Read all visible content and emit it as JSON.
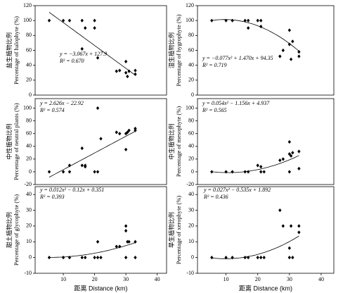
{
  "chart_data": [
    {
      "type": "scatter",
      "ylabel": [
        "盐生植物比例",
        "Percentage of halophyte (%)"
      ],
      "equation": "y = −3.067x + 127.9",
      "r2": "R² = 0.670",
      "fit": [
        0,
        -3.067,
        127.9
      ],
      "x": [
        5.5,
        10,
        12,
        16,
        16,
        17,
        20,
        20,
        21,
        27,
        28,
        30,
        30,
        30.5,
        31,
        33,
        33
      ],
      "values": [
        100,
        100,
        100,
        100,
        62,
        90,
        100,
        90,
        50,
        32,
        33,
        45,
        30,
        25,
        32,
        33,
        28
      ],
      "xlim": [
        1,
        43
      ],
      "ylim": [
        0,
        120
      ],
      "yticks": [
        0,
        20,
        40,
        60,
        80,
        100,
        120
      ],
      "color": "#000000"
    },
    {
      "type": "scatter",
      "ylabel": [
        "湿生植物比例",
        "Percentage of hygrophyte (%)"
      ],
      "equation": "y = −0.077x² + 1.470x + 94.35",
      "r2": "R² = 0.719",
      "fit": [
        -0.077,
        1.47,
        94.35
      ],
      "x": [
        5.5,
        10,
        12,
        16,
        17,
        17,
        20,
        21,
        21,
        27,
        28,
        30,
        30,
        30.5,
        31,
        33,
        33
      ],
      "values": [
        100,
        100,
        100,
        100,
        100,
        90,
        100,
        100,
        92,
        52,
        60,
        87,
        68,
        48,
        72,
        58,
        52
      ],
      "xlim": [
        1,
        44
      ],
      "ylim": [
        0,
        120
      ],
      "yticks": [
        0,
        20,
        40,
        60,
        80,
        100,
        120
      ],
      "color": "#000000"
    },
    {
      "type": "scatter",
      "ylabel": [
        "中性植物比例",
        "Percentage of neutral plants (%)"
      ],
      "equation": "y = 2.626x − 22.92",
      "r2": "R² = 0.574",
      "fit": [
        0,
        2.626,
        -22.92
      ],
      "x": [
        5.5,
        10,
        12,
        12,
        16,
        16,
        17,
        17,
        20,
        21,
        21,
        22,
        27,
        28,
        30,
        30,
        30.5,
        31,
        33,
        33
      ],
      "values": [
        0,
        0,
        0,
        10,
        37,
        10,
        10,
        8,
        0,
        0,
        100,
        52,
        62,
        60,
        35,
        60,
        62,
        65,
        68,
        65
      ],
      "xlim": [
        1,
        43
      ],
      "ylim": [
        -20,
        115
      ],
      "yticks": [
        -20,
        0,
        20,
        40,
        60,
        80,
        100
      ],
      "color": "#000000"
    },
    {
      "type": "scatter",
      "ylabel": [
        "中生植物比例",
        "Percentage of mesophyte (%)"
      ],
      "equation": "y = 0.054x² − 1.156x + 4.937",
      "r2": "R² = 0.565",
      "fit": [
        0.054,
        -1.156,
        4.937
      ],
      "x": [
        5.5,
        10,
        12,
        16,
        17,
        20,
        21,
        21,
        22,
        27,
        28,
        30,
        30,
        30,
        30.5,
        31,
        33,
        33
      ],
      "values": [
        0,
        0,
        0,
        0,
        0,
        10,
        8,
        0,
        0,
        18,
        20,
        0,
        47,
        28,
        25,
        30,
        5,
        32
      ],
      "xlim": [
        1,
        44
      ],
      "ylim": [
        -20,
        115
      ],
      "yticks": [
        -20,
        0,
        20,
        40,
        60,
        80,
        100
      ],
      "color": "#000000"
    },
    {
      "type": "scatter",
      "ylabel": [
        "甜土植物比例",
        "Percentage of glycophyte (%)"
      ],
      "equation": "y = 0.012x² − 0.12x + 0.351",
      "r2": "R² = 0.393",
      "fit": [
        0.012,
        -0.12,
        0.351
      ],
      "xlabel": "距离  Distance (km)",
      "x": [
        5.5,
        10,
        12,
        16,
        17,
        20,
        21,
        21,
        22,
        27,
        28,
        30,
        30,
        30,
        30.5,
        31,
        33,
        33
      ],
      "values": [
        0,
        0,
        0,
        0,
        0,
        0,
        10,
        0,
        0,
        7,
        7,
        0,
        20,
        17,
        10,
        10,
        10,
        0
      ],
      "xlim": [
        1,
        43
      ],
      "xticks": [
        10,
        20,
        30,
        40
      ],
      "ylim": [
        -10,
        45
      ],
      "yticks": [
        -10,
        0,
        10,
        20,
        30,
        40
      ],
      "color": "#000000"
    },
    {
      "type": "scatter",
      "ylabel": [
        "旱生植物比例",
        "Percentage of xerophyte (%)"
      ],
      "equation": "y = 0.027x² − 0.535x + 1.892",
      "r2": "R² = 0.436",
      "fit": [
        0.027,
        -0.535,
        1.892
      ],
      "xlabel": "距离  Distance (km)",
      "x": [
        5.5,
        10,
        12,
        16,
        17,
        20,
        21,
        22,
        27,
        28,
        30,
        30,
        30.5,
        31,
        33,
        33
      ],
      "values": [
        0,
        0,
        0,
        0,
        0,
        0,
        0,
        0,
        30,
        20,
        6,
        0,
        20,
        0,
        20,
        16
      ],
      "xlim": [
        1,
        44
      ],
      "xticks": [
        10,
        20,
        30,
        40
      ],
      "ylim": [
        -10,
        45
      ],
      "yticks": [
        -10,
        0,
        10,
        20,
        30,
        40
      ],
      "color": "#000000"
    }
  ]
}
